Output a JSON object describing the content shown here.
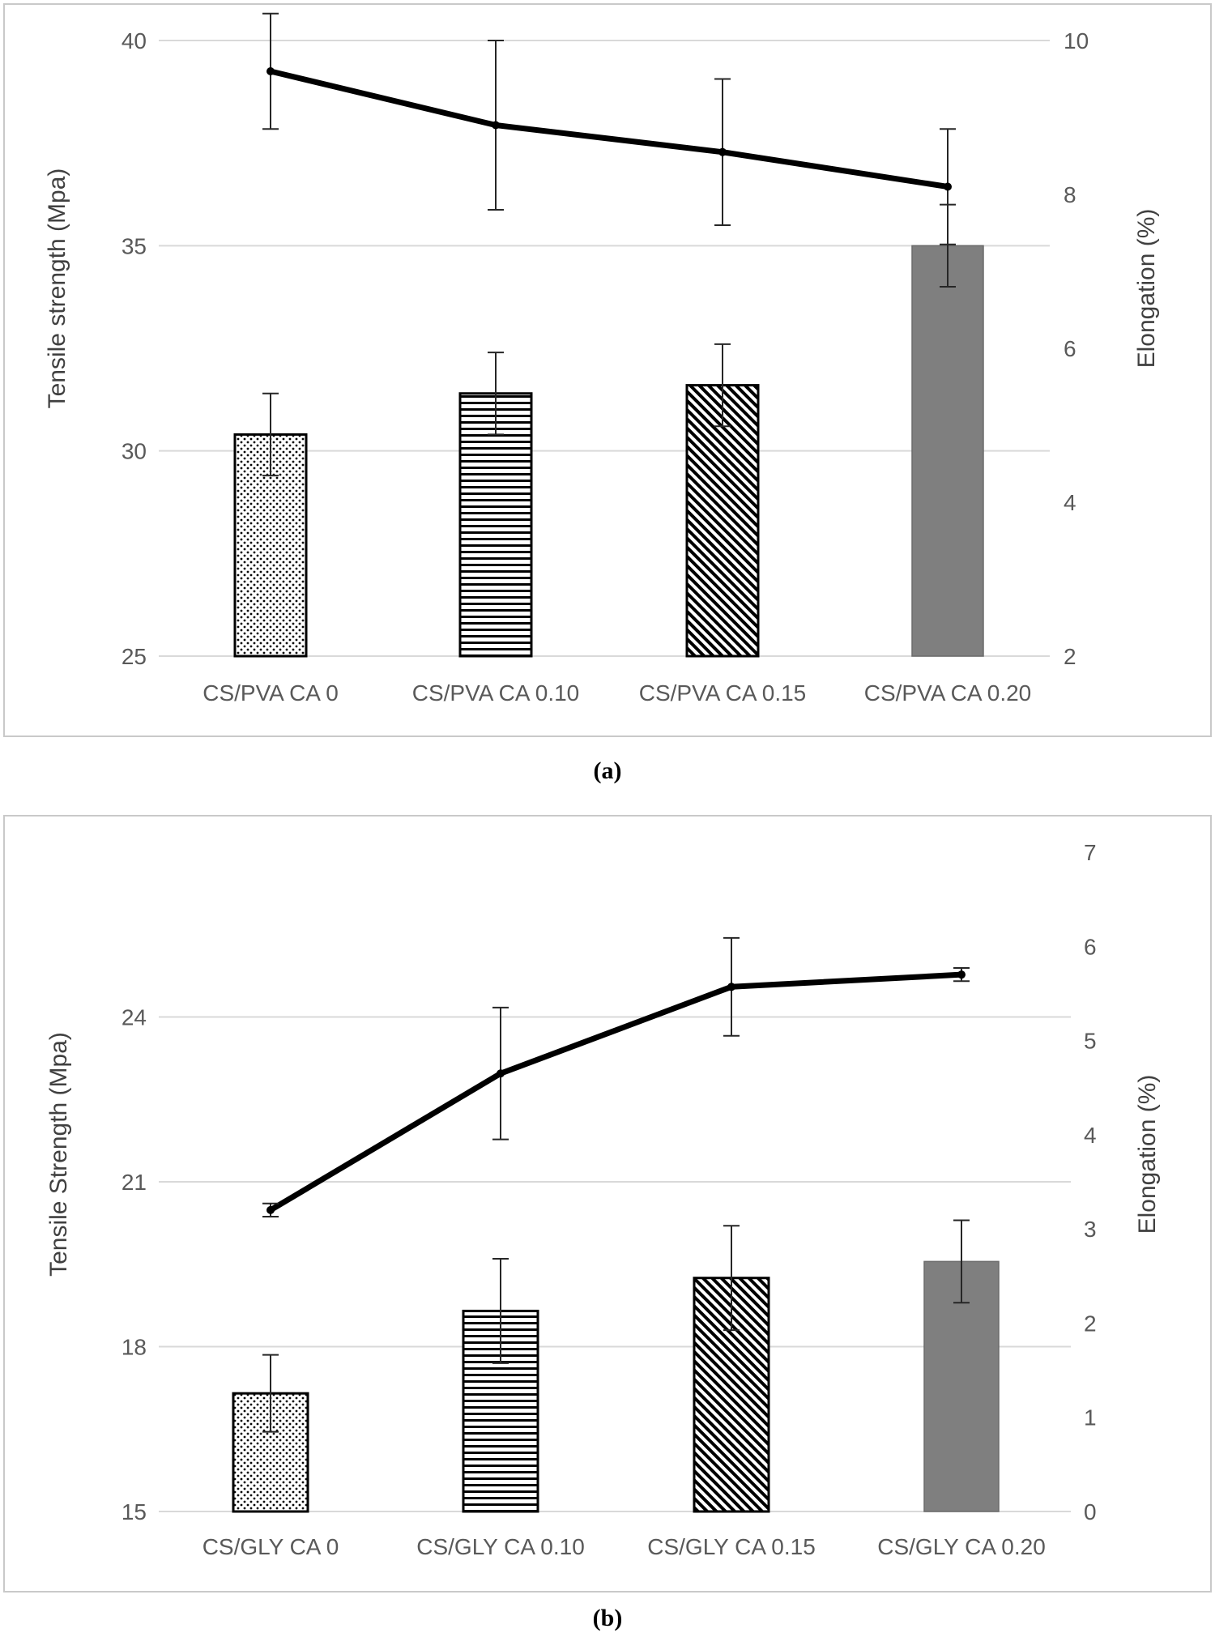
{
  "colors": {
    "grid": "#d9d9d9",
    "solid_bar": "#7f7f7f",
    "line": "#000000",
    "error_bar": "#262626"
  },
  "chart_data": [
    {
      "type": "bar",
      "caption": "(a)",
      "categories": [
        "CS/PVA CA 0",
        "CS/PVA CA 0.10",
        "CS/PVA CA 0.15",
        "CS/PVA CA 0.20"
      ],
      "patterns": [
        "dots",
        "horizontal",
        "diagonal",
        "solid"
      ],
      "ylabel": "Tensile strength (Mpa)",
      "ylim": [
        25,
        40
      ],
      "yticks": [
        "25",
        "30",
        "35",
        "40"
      ],
      "y2label": "Elongation (%)",
      "y2lim": [
        2,
        10
      ],
      "y2ticks": [
        "2",
        "4",
        "6",
        "8",
        "10"
      ],
      "series": [
        {
          "name": "Tensile strength",
          "kind": "bar",
          "axis": "left",
          "values": [
            30.4,
            31.4,
            31.6,
            35.0
          ],
          "errors": [
            1.0,
            1.0,
            1.0,
            1.0
          ]
        },
        {
          "name": "Elongation",
          "kind": "line",
          "axis": "right",
          "values": [
            9.6,
            8.9,
            8.55,
            8.1
          ],
          "errors": [
            0.75,
            1.1,
            0.95,
            0.75
          ]
        }
      ]
    },
    {
      "type": "bar",
      "caption": "(b)",
      "categories": [
        "CS/GLY CA 0",
        "CS/GLY CA 0.10",
        "CS/GLY CA 0.15",
        "CS/GLY CA 0.20"
      ],
      "patterns": [
        "dots",
        "horizontal",
        "diagonal",
        "solid"
      ],
      "ylabel": "Tensile Strength (Mpa)",
      "ylim": [
        15,
        27
      ],
      "yticks": [
        "15",
        "18",
        "21",
        "24"
      ],
      "y2label": "Elongation (%)",
      "y2lim": [
        0,
        7
      ],
      "y2ticks": [
        "0",
        "1",
        "2",
        "3",
        "4",
        "5",
        "6",
        "7"
      ],
      "series": [
        {
          "name": "Tensile strength",
          "kind": "bar",
          "axis": "left",
          "values": [
            17.15,
            18.65,
            19.25,
            19.55
          ],
          "errors": [
            0.7,
            0.95,
            0.95,
            0.75
          ]
        },
        {
          "name": "Elongation",
          "kind": "line",
          "axis": "right",
          "values": [
            3.2,
            4.65,
            5.57,
            5.7
          ],
          "errors": [
            0.07,
            0.7,
            0.52,
            0.07
          ]
        }
      ]
    }
  ]
}
